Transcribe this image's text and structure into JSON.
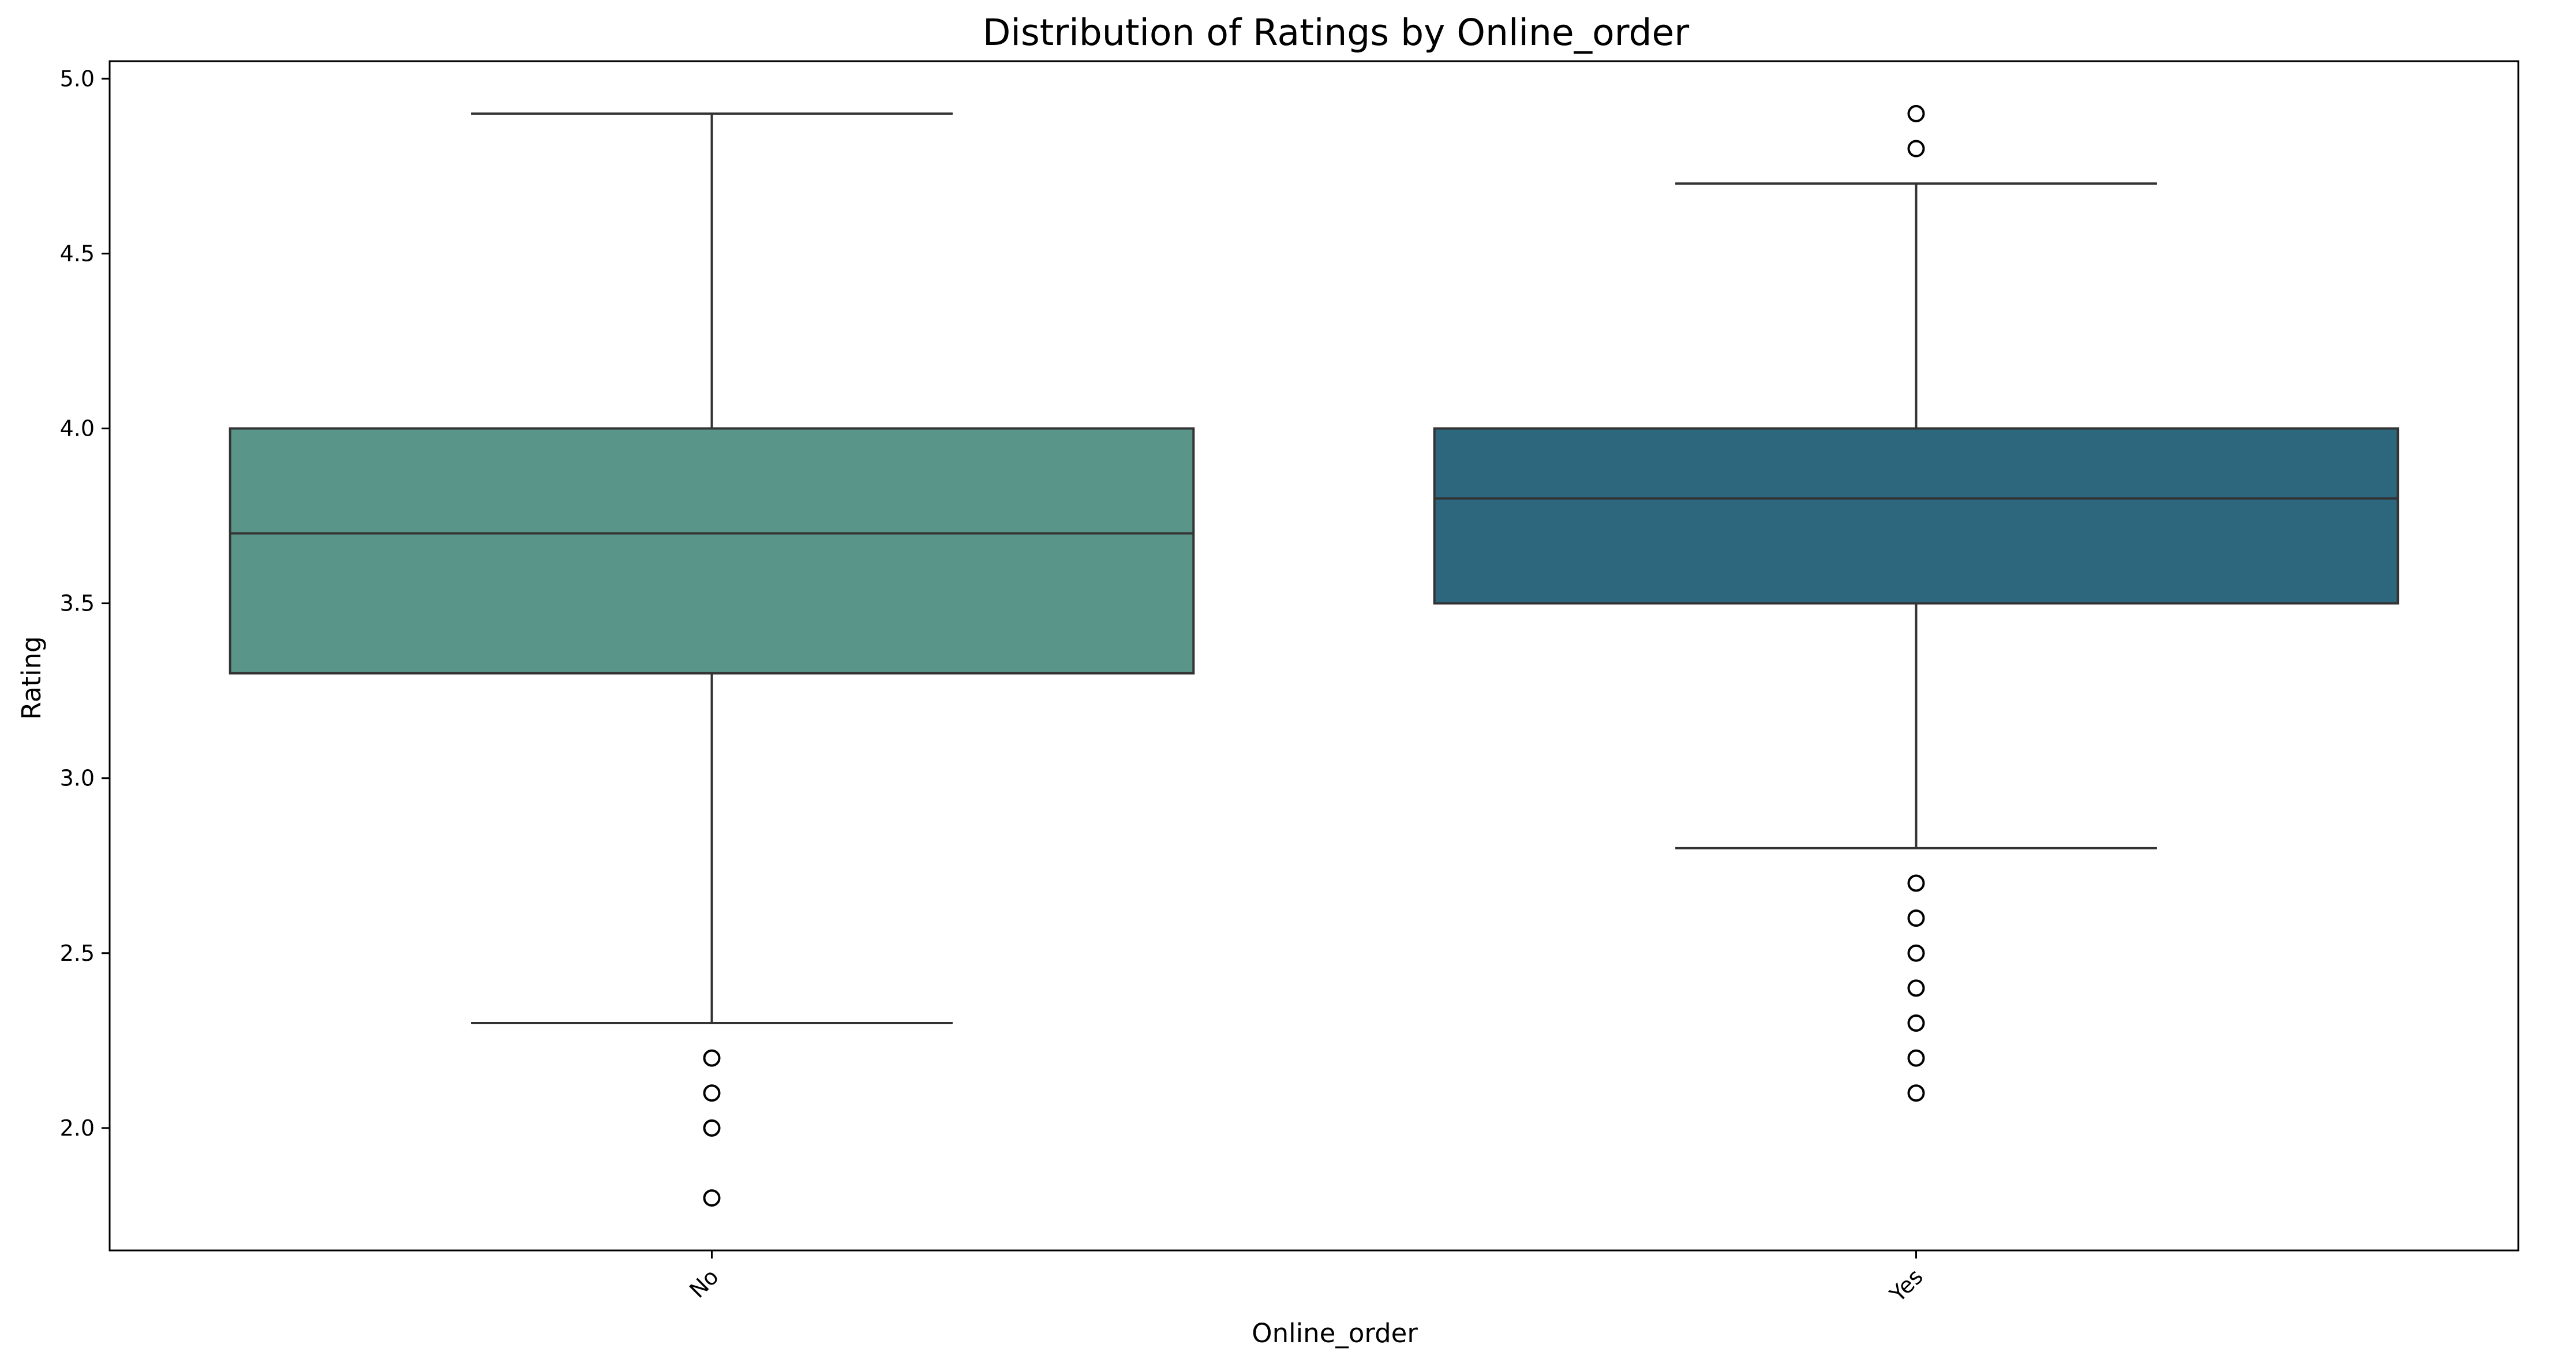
{
  "chart_data": {
    "type": "box",
    "title": "Distribution of Ratings by Online_order",
    "xlabel": "Online_order",
    "ylabel": "Rating",
    "ylim": [
      1.65,
      5.05
    ],
    "yticks": [
      2.0,
      2.5,
      3.0,
      3.5,
      4.0,
      4.5,
      5.0
    ],
    "ytick_labels": [
      "2.0",
      "2.5",
      "3.0",
      "3.5",
      "4.0",
      "4.5",
      "5.0"
    ],
    "grid": false,
    "categories": [
      "No",
      "Yes"
    ],
    "boxes": [
      {
        "category": "No",
        "color": "#5a9589",
        "whislo": 2.3,
        "q1": 3.3,
        "median": 3.7,
        "q3": 4.0,
        "whishi": 4.9,
        "fliers": [
          2.2,
          2.1,
          2.0,
          1.8
        ]
      },
      {
        "category": "Yes",
        "color": "#2d677d",
        "whislo": 2.8,
        "q1": 3.5,
        "median": 3.8,
        "q3": 4.0,
        "whishi": 4.7,
        "fliers": [
          4.9,
          4.8,
          2.7,
          2.6,
          2.5,
          2.4,
          2.3,
          2.2,
          2.1
        ]
      }
    ]
  }
}
